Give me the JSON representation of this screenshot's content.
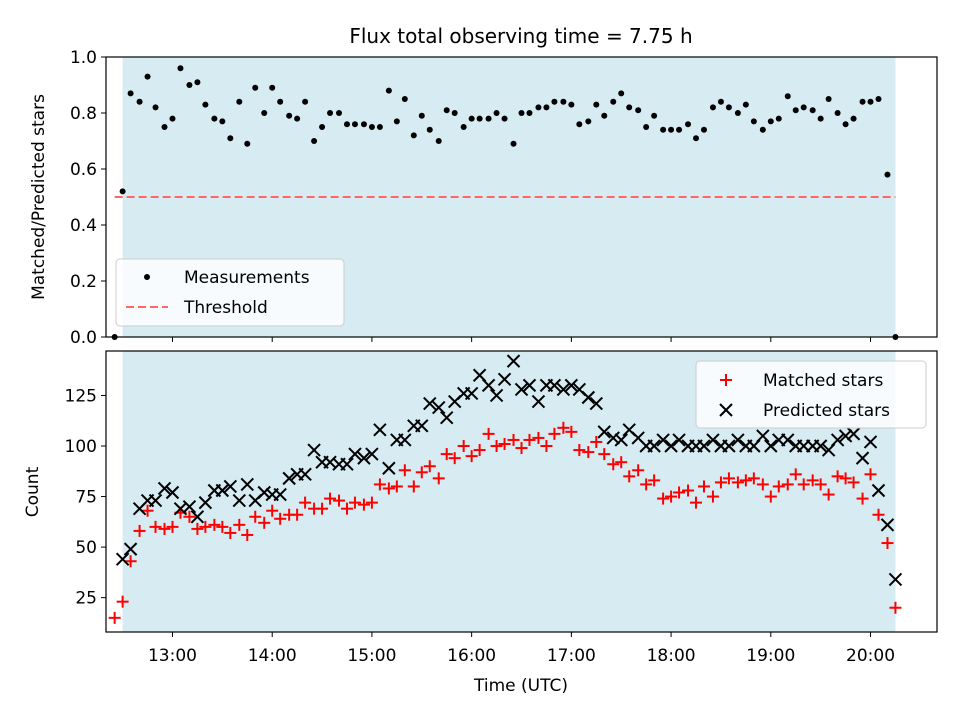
{
  "figure": {
    "title": "Flux total observing time = 7.75 h",
    "shade_color": "#add8e6",
    "shade_opacity": 0.5
  },
  "chart_data": [
    {
      "type": "scatter",
      "title": "Flux total observing time = 7.75 h",
      "xlabel": "",
      "ylabel": "Matched/Predicted stars",
      "xlim": [
        "12:20",
        "20:40"
      ],
      "ylim": [
        0,
        1.0
      ],
      "yticks": [
        "0.0",
        "0.2",
        "0.4",
        "0.6",
        "0.8",
        "1.0"
      ],
      "x_unit": "hours of day (UTC)",
      "shaded_interval": [
        "12:30",
        "20:15"
      ],
      "legend_position": "lower-left",
      "grid": false,
      "series": [
        {
          "name": "Measurements",
          "marker": "dot",
          "color": "#000000",
          "x": [
            12.42,
            12.5,
            12.58,
            12.67,
            12.75,
            12.83,
            12.92,
            13.0,
            13.08,
            13.17,
            13.25,
            13.33,
            13.42,
            13.5,
            13.58,
            13.67,
            13.75,
            13.83,
            13.92,
            14.0,
            14.08,
            14.17,
            14.25,
            14.33,
            14.42,
            14.5,
            14.58,
            14.67,
            14.75,
            14.83,
            14.92,
            15.0,
            15.08,
            15.17,
            15.25,
            15.33,
            15.42,
            15.5,
            15.58,
            15.67,
            15.75,
            15.83,
            15.92,
            16.0,
            16.08,
            16.17,
            16.25,
            16.33,
            16.42,
            16.5,
            16.58,
            16.67,
            16.75,
            16.83,
            16.92,
            17.0,
            17.08,
            17.17,
            17.25,
            17.33,
            17.42,
            17.5,
            17.58,
            17.67,
            17.75,
            17.83,
            17.92,
            18.0,
            18.08,
            18.17,
            18.25,
            18.33,
            18.42,
            18.5,
            18.58,
            18.67,
            18.75,
            18.83,
            18.92,
            19.0,
            19.08,
            19.17,
            19.25,
            19.33,
            19.42,
            19.5,
            19.58,
            19.67,
            19.75,
            19.83,
            19.92,
            20.0,
            20.08,
            20.17,
            20.25
          ],
          "y": [
            0.0,
            0.52,
            0.87,
            0.84,
            0.93,
            0.82,
            0.75,
            0.78,
            0.96,
            0.9,
            0.91,
            0.83,
            0.78,
            0.77,
            0.71,
            0.84,
            0.69,
            0.89,
            0.8,
            0.89,
            0.84,
            0.79,
            0.78,
            0.84,
            0.7,
            0.75,
            0.8,
            0.8,
            0.76,
            0.76,
            0.76,
            0.75,
            0.75,
            0.88,
            0.77,
            0.85,
            0.72,
            0.79,
            0.74,
            0.7,
            0.81,
            0.8,
            0.75,
            0.78,
            0.78,
            0.78,
            0.8,
            0.78,
            0.69,
            0.8,
            0.8,
            0.82,
            0.82,
            0.84,
            0.84,
            0.83,
            0.76,
            0.77,
            0.83,
            0.79,
            0.84,
            0.87,
            0.82,
            0.81,
            0.75,
            0.79,
            0.74,
            0.74,
            0.74,
            0.76,
            0.71,
            0.74,
            0.82,
            0.84,
            0.82,
            0.8,
            0.83,
            0.77,
            0.74,
            0.77,
            0.78,
            0.86,
            0.81,
            0.82,
            0.81,
            0.78,
            0.85,
            0.8,
            0.76,
            0.78,
            0.84,
            0.84,
            0.85,
            0.58,
            0.0
          ]
        },
        {
          "name": "Threshold",
          "style": "dashed",
          "color": "#ff6666",
          "x": [
            12.42,
            20.25
          ],
          "y": [
            0.5,
            0.5
          ]
        }
      ]
    },
    {
      "type": "scatter",
      "title": "",
      "xlabel": "Time (UTC)",
      "ylabel": "Count",
      "xlim": [
        "12:20",
        "20:40"
      ],
      "ylim": [
        8,
        147
      ],
      "xticks": [
        "13:00",
        "14:00",
        "15:00",
        "16:00",
        "17:00",
        "18:00",
        "19:00",
        "20:00"
      ],
      "yticks": [
        "25",
        "50",
        "75",
        "100",
        "125"
      ],
      "shaded_interval": [
        "12:30",
        "20:15"
      ],
      "legend_position": "top-right",
      "grid": false,
      "series": [
        {
          "name": "Matched stars",
          "marker": "plus",
          "color": "#ff0000",
          "x": [
            12.42,
            12.5,
            12.58,
            12.67,
            12.75,
            12.83,
            12.92,
            13.0,
            13.08,
            13.17,
            13.25,
            13.33,
            13.42,
            13.5,
            13.58,
            13.67,
            13.75,
            13.83,
            13.92,
            14.0,
            14.08,
            14.17,
            14.25,
            14.33,
            14.42,
            14.5,
            14.58,
            14.67,
            14.75,
            14.83,
            14.92,
            15.0,
            15.08,
            15.17,
            15.25,
            15.33,
            15.42,
            15.5,
            15.58,
            15.67,
            15.75,
            15.83,
            15.92,
            16.0,
            16.08,
            16.17,
            16.25,
            16.33,
            16.42,
            16.5,
            16.58,
            16.67,
            16.75,
            16.83,
            16.92,
            17.0,
            17.08,
            17.17,
            17.25,
            17.33,
            17.42,
            17.5,
            17.58,
            17.67,
            17.75,
            17.83,
            17.92,
            18.0,
            18.08,
            18.17,
            18.25,
            18.33,
            18.42,
            18.5,
            18.58,
            18.67,
            18.75,
            18.83,
            18.92,
            19.0,
            19.08,
            19.17,
            19.25,
            19.33,
            19.42,
            19.5,
            19.58,
            19.67,
            19.75,
            19.83,
            19.92,
            20.0,
            20.08,
            20.17,
            20.25
          ],
          "y": [
            15,
            23,
            43,
            58,
            68,
            60,
            59,
            60,
            67,
            65,
            59,
            60,
            61,
            60,
            57,
            61,
            56,
            65,
            62,
            68,
            64,
            66,
            66,
            72,
            69,
            69,
            74,
            73,
            69,
            72,
            71,
            72,
            81,
            79,
            80,
            88,
            80,
            87,
            90,
            84,
            96,
            94,
            100,
            95,
            98,
            106,
            100,
            101,
            103,
            99,
            103,
            104,
            100,
            106,
            109,
            107,
            98,
            97,
            102,
            96,
            91,
            92,
            85,
            88,
            81,
            83,
            74,
            75,
            77,
            78,
            72,
            80,
            75,
            82,
            84,
            82,
            83,
            84,
            81,
            75,
            80,
            81,
            86,
            81,
            83,
            81,
            76,
            85,
            84,
            82,
            74,
            86,
            66,
            52,
            20
          ]
        },
        {
          "name": "Predicted stars",
          "marker": "x",
          "color": "#000000",
          "x": [
            12.5,
            12.58,
            12.67,
            12.75,
            12.83,
            12.92,
            13.0,
            13.08,
            13.17,
            13.25,
            13.33,
            13.42,
            13.5,
            13.58,
            13.67,
            13.75,
            13.83,
            13.92,
            14.0,
            14.08,
            14.17,
            14.25,
            14.33,
            14.42,
            14.5,
            14.58,
            14.67,
            14.75,
            14.83,
            14.92,
            15.0,
            15.08,
            15.17,
            15.25,
            15.33,
            15.42,
            15.5,
            15.58,
            15.67,
            15.75,
            15.83,
            15.92,
            16.0,
            16.08,
            16.17,
            16.25,
            16.33,
            16.42,
            16.5,
            16.58,
            16.67,
            16.75,
            16.83,
            16.92,
            17.0,
            17.08,
            17.17,
            17.25,
            17.33,
            17.42,
            17.5,
            17.58,
            17.67,
            17.75,
            17.83,
            17.92,
            18.0,
            18.08,
            18.17,
            18.25,
            18.33,
            18.42,
            18.5,
            18.58,
            18.67,
            18.75,
            18.83,
            18.92,
            19.0,
            19.08,
            19.17,
            19.25,
            19.33,
            19.42,
            19.5,
            19.58,
            19.67,
            19.75,
            19.83,
            19.92,
            20.0,
            20.08,
            20.17,
            20.25
          ],
          "y": [
            44,
            49,
            69,
            73,
            73,
            79,
            77,
            69,
            70,
            65,
            72,
            78,
            78,
            80,
            73,
            81,
            73,
            77,
            76,
            76,
            84,
            86,
            86,
            98,
            92,
            92,
            91,
            91,
            96,
            94,
            96,
            108,
            89,
            103,
            103,
            110,
            110,
            121,
            119,
            114,
            122,
            126,
            126,
            135,
            130,
            125,
            133,
            142,
            128,
            130,
            122,
            130,
            130,
            128,
            130,
            128,
            124,
            121,
            107,
            104,
            103,
            108,
            104,
            100,
            100,
            103,
            100,
            103,
            100,
            100,
            100,
            103,
            100,
            100,
            103,
            100,
            100,
            105,
            100,
            103,
            103,
            100,
            100,
            100,
            100,
            98,
            103,
            105,
            106,
            94,
            102,
            78,
            61,
            34
          ]
        }
      ]
    }
  ]
}
